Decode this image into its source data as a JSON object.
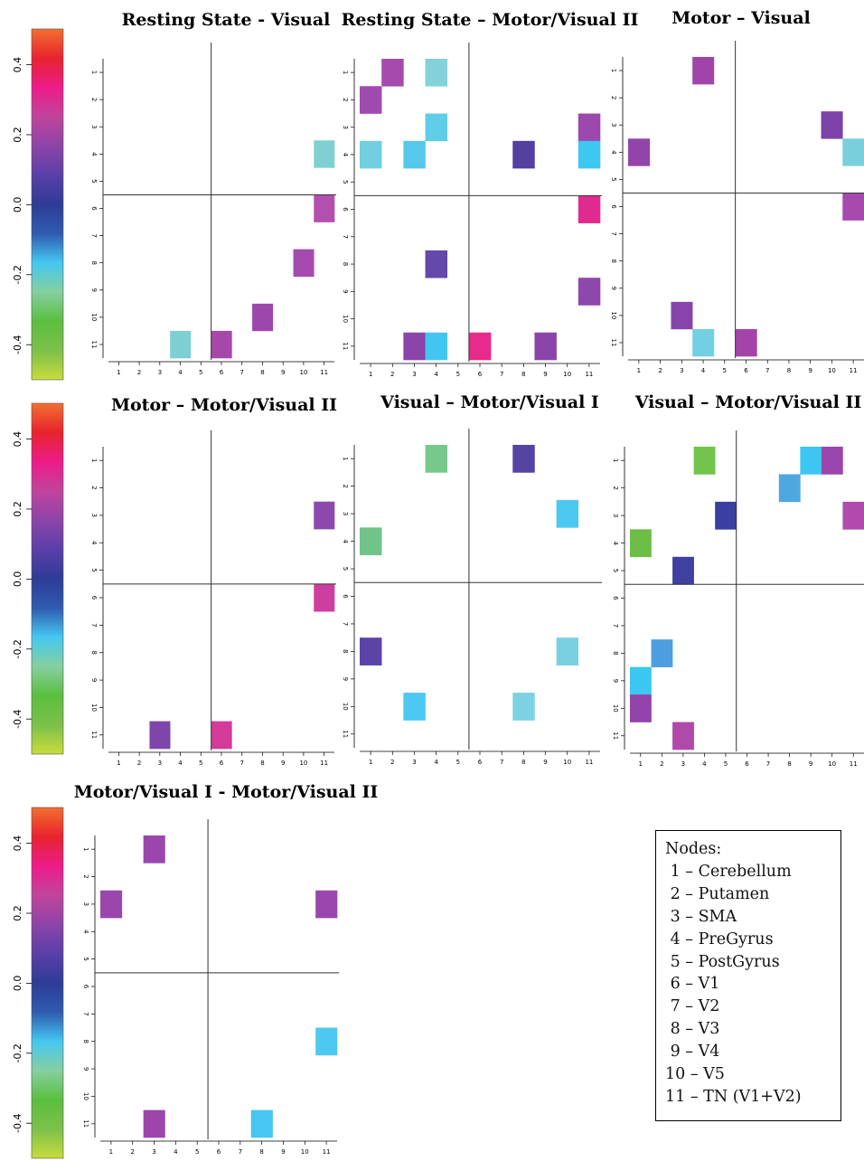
{
  "chart_data": {
    "type": "heatmap",
    "colorbar": {
      "ticks": [
        "0.4",
        "0.2",
        "0.0",
        "-0.2",
        "-0.4"
      ],
      "colors": [
        "#c8dc3c",
        "#7cc04a",
        "#5bbf3e",
        "#86cfa0",
        "#44c8f0",
        "#2f5bb0",
        "#2e3c96",
        "#5a3fa8",
        "#8d44a8",
        "#c0449c",
        "#ee1b8a",
        "#e8232e",
        "#f26f2f"
      ]
    },
    "node_labels": [
      "1",
      "2",
      "3",
      "4",
      "5",
      "6",
      "7",
      "8",
      "9",
      "10",
      "11"
    ],
    "panels": [
      {
        "title": "Resting State - Visual",
        "cells": [
          {
            "row": 4,
            "col": 11,
            "color": "#7fd0d0"
          },
          {
            "row": 6,
            "col": 11,
            "color": "#b34fae"
          },
          {
            "row": 8,
            "col": 10,
            "color": "#a54bb0"
          },
          {
            "row": 10,
            "col": 8,
            "color": "#9d47ad"
          },
          {
            "row": 11,
            "col": 4,
            "color": "#7dcfd4"
          },
          {
            "row": 11,
            "col": 6,
            "color": "#a847aa"
          }
        ]
      },
      {
        "title": "Resting State – Motor/Visual II",
        "cells": [
          {
            "row": 1,
            "col": 2,
            "color": "#a64bae"
          },
          {
            "row": 1,
            "col": 4,
            "color": "#82d2d8"
          },
          {
            "row": 2,
            "col": 1,
            "color": "#9f4bae"
          },
          {
            "row": 3,
            "col": 4,
            "color": "#5fcde8"
          },
          {
            "row": 3,
            "col": 11,
            "color": "#9c48ad"
          },
          {
            "row": 4,
            "col": 1,
            "color": "#72cfe0"
          },
          {
            "row": 4,
            "col": 3,
            "color": "#56c8ec"
          },
          {
            "row": 4,
            "col": 8,
            "color": "#5440a0"
          },
          {
            "row": 4,
            "col": 11,
            "color": "#3cc8f2"
          },
          {
            "row": 6,
            "col": 11,
            "color": "#e02a8e"
          },
          {
            "row": 8,
            "col": 4,
            "color": "#6448aa"
          },
          {
            "row": 9,
            "col": 11,
            "color": "#8e47ab"
          },
          {
            "row": 11,
            "col": 3,
            "color": "#8b44aa"
          },
          {
            "row": 11,
            "col": 4,
            "color": "#42c6f0"
          },
          {
            "row": 11,
            "col": 6,
            "color": "#e82a8a"
          },
          {
            "row": 11,
            "col": 9,
            "color": "#8b44aa"
          }
        ]
      },
      {
        "title": "Motor – Visual",
        "cells": [
          {
            "row": 1,
            "col": 4,
            "color": "#a044ac"
          },
          {
            "row": 3,
            "col": 10,
            "color": "#7d42aa"
          },
          {
            "row": 4,
            "col": 1,
            "color": "#9344aa"
          },
          {
            "row": 4,
            "col": 11,
            "color": "#79d0dc"
          },
          {
            "row": 6,
            "col": 11,
            "color": "#a64ab0"
          },
          {
            "row": 10,
            "col": 3,
            "color": "#8745aa"
          },
          {
            "row": 11,
            "col": 4,
            "color": "#72d0e2"
          },
          {
            "row": 11,
            "col": 6,
            "color": "#a444aa"
          }
        ]
      },
      {
        "title": "Motor – Motor/Visual II",
        "cells": [
          {
            "row": 3,
            "col": 11,
            "color": "#8c48ac"
          },
          {
            "row": 6,
            "col": 11,
            "color": "#ce3ea0"
          },
          {
            "row": 11,
            "col": 3,
            "color": "#7e46aa"
          },
          {
            "row": 11,
            "col": 6,
            "color": "#d43a98"
          }
        ]
      },
      {
        "title": "Visual – Motor/Visual I",
        "cells": [
          {
            "row": 1,
            "col": 4,
            "color": "#78c88c"
          },
          {
            "row": 1,
            "col": 8,
            "color": "#5644a4"
          },
          {
            "row": 3,
            "col": 10,
            "color": "#4ec8f0"
          },
          {
            "row": 4,
            "col": 1,
            "color": "#70c48a"
          },
          {
            "row": 8,
            "col": 1,
            "color": "#5a44a6"
          },
          {
            "row": 8,
            "col": 10,
            "color": "#7ad0e2"
          },
          {
            "row": 10,
            "col": 3,
            "color": "#4cc8f2"
          },
          {
            "row": 10,
            "col": 8,
            "color": "#7cd2e0"
          }
        ]
      },
      {
        "title": "Visual – Motor/Visual II",
        "cells": [
          {
            "row": 1,
            "col": 4,
            "color": "#74c44c"
          },
          {
            "row": 1,
            "col": 9,
            "color": "#3ec6f2"
          },
          {
            "row": 1,
            "col": 10,
            "color": "#9b46ac"
          },
          {
            "row": 2,
            "col": 8,
            "color": "#4ea8e0"
          },
          {
            "row": 3,
            "col": 5,
            "color": "#3a40a0"
          },
          {
            "row": 3,
            "col": 11,
            "color": "#b04aae"
          },
          {
            "row": 4,
            "col": 1,
            "color": "#6cbe46"
          },
          {
            "row": 5,
            "col": 3,
            "color": "#4040a0"
          },
          {
            "row": 8,
            "col": 2,
            "color": "#4c9ee0"
          },
          {
            "row": 9,
            "col": 1,
            "color": "#3cc6f2"
          },
          {
            "row": 10,
            "col": 1,
            "color": "#9244aa"
          },
          {
            "row": 11,
            "col": 3,
            "color": "#b04aaa"
          }
        ]
      },
      {
        "title": "Motor/Visual I - Motor/Visual II",
        "cells": [
          {
            "row": 1,
            "col": 3,
            "color": "#9a46ac"
          },
          {
            "row": 3,
            "col": 1,
            "color": "#9a46ac"
          },
          {
            "row": 3,
            "col": 11,
            "color": "#9a46ac"
          },
          {
            "row": 8,
            "col": 11,
            "color": "#4ec8f0"
          },
          {
            "row": 11,
            "col": 3,
            "color": "#9c46ac"
          },
          {
            "row": 11,
            "col": 8,
            "color": "#46c6f0"
          }
        ]
      }
    ],
    "legend": {
      "title": "Nodes:",
      "items": [
        "1 – Cerebellum",
        "2 – Putamen",
        "3 – SMA",
        "4 – PreGyrus",
        "5 – PostGyrus",
        "6 – V1",
        "7 – V2",
        "8 – V3",
        "9 – V4",
        "10 – V5",
        "11 – TN (V1+V2)"
      ]
    }
  }
}
